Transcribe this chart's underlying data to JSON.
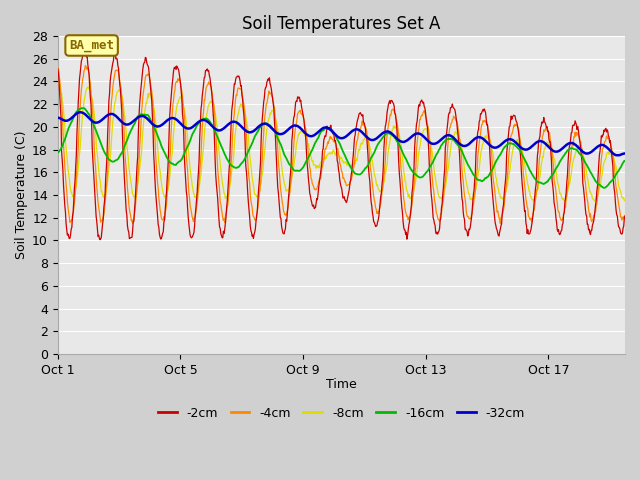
{
  "title": "Soil Temperatures Set A",
  "xlabel": "Time",
  "ylabel": "Soil Temperature (C)",
  "ylim": [
    0,
    28
  ],
  "yticks": [
    0,
    2,
    4,
    6,
    8,
    10,
    12,
    14,
    16,
    18,
    20,
    22,
    24,
    26,
    28
  ],
  "xtick_labels": [
    "Oct 1",
    "Oct 5",
    "Oct 9",
    "Oct 13",
    "Oct 17"
  ],
  "xtick_positions": [
    0,
    4,
    8,
    12,
    16
  ],
  "n_days": 18.5,
  "n_points": 888,
  "legend_labels": [
    "-2cm",
    "-4cm",
    "-8cm",
    "-16cm",
    "-32cm"
  ],
  "legend_colors": [
    "#cc0000",
    "#ff8800",
    "#dddd00",
    "#00bb00",
    "#0000cc"
  ],
  "series_colors": [
    "#cc0000",
    "#ff8800",
    "#dddd00",
    "#00bb00",
    "#0000cc"
  ],
  "background_color": "#d0d0d0",
  "plot_bg_color": "#e8e8e8",
  "grid_color": "#ffffff",
  "annotation_text": "BA_met",
  "annotation_bg": "#ffffaa",
  "annotation_border": "#886600",
  "title_fontsize": 12,
  "label_fontsize": 9,
  "tick_fontsize": 9,
  "legend_fontsize": 9
}
